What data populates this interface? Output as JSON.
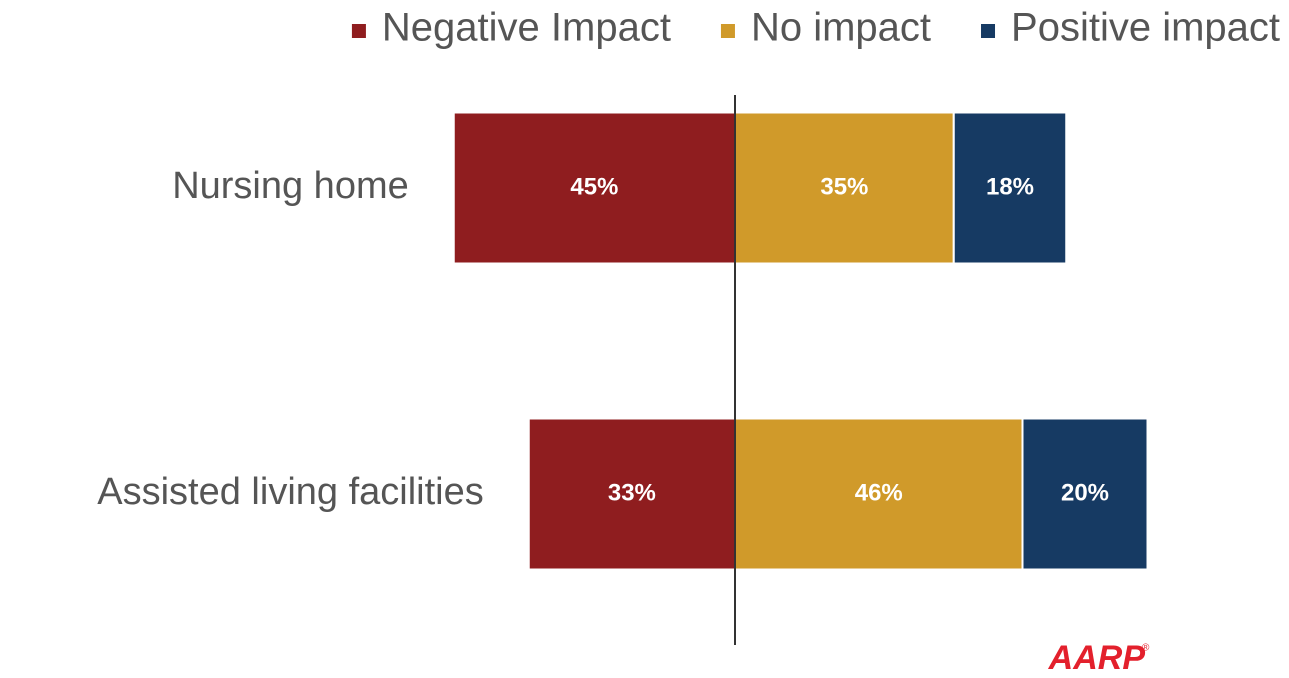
{
  "chart_data": {
    "type": "diverging_bar",
    "categories": [
      "Nursing home",
      "Assisted living facilities"
    ],
    "series": [
      {
        "name": "Negative Impact",
        "color": "#8f1d1f",
        "values": [
          45,
          33
        ],
        "value_labels": [
          "45%",
          "33%"
        ]
      },
      {
        "name": "No impact",
        "color": "#d09a2a",
        "values": [
          35,
          46
        ],
        "value_labels": [
          "35%",
          "46%"
        ]
      },
      {
        "name": "Positive impact",
        "color": "#163a63",
        "values": [
          18,
          20
        ],
        "value_labels": [
          "18%",
          "20%"
        ]
      }
    ],
    "legend": "top-right",
    "logo": "AARP"
  }
}
